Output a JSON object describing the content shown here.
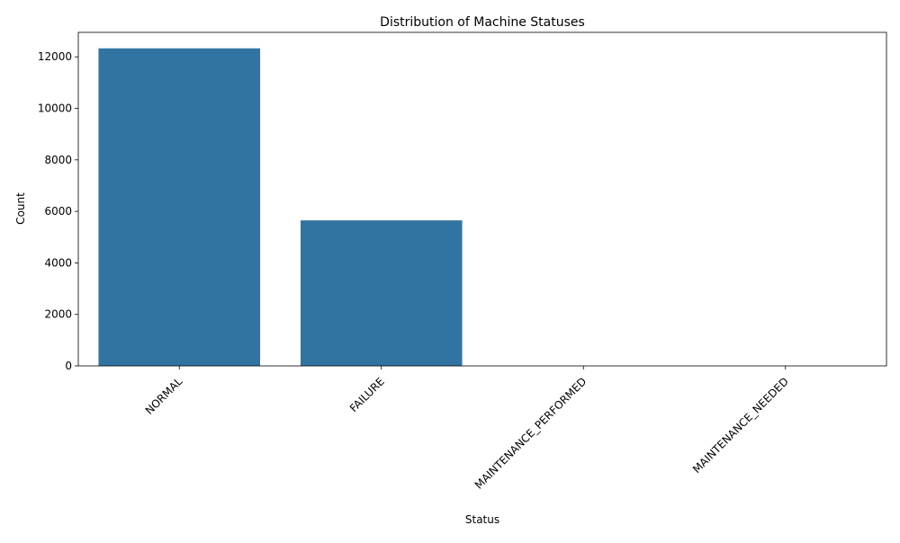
{
  "chart_data": {
    "type": "bar",
    "title": "Distribution of Machine Statuses",
    "xlabel": "Status",
    "ylabel": "Count",
    "categories": [
      "NORMAL",
      "FAILURE",
      "MAINTENANCE_PERFORMED",
      "MAINTENANCE_NEEDED"
    ],
    "values": [
      12330,
      5650,
      0,
      0
    ],
    "ylim": [
      0,
      12950
    ],
    "yticks": [
      0,
      2000,
      4000,
      6000,
      8000,
      10000,
      12000
    ],
    "grid": false,
    "legend": "none",
    "bar_color": "#3274a1"
  }
}
